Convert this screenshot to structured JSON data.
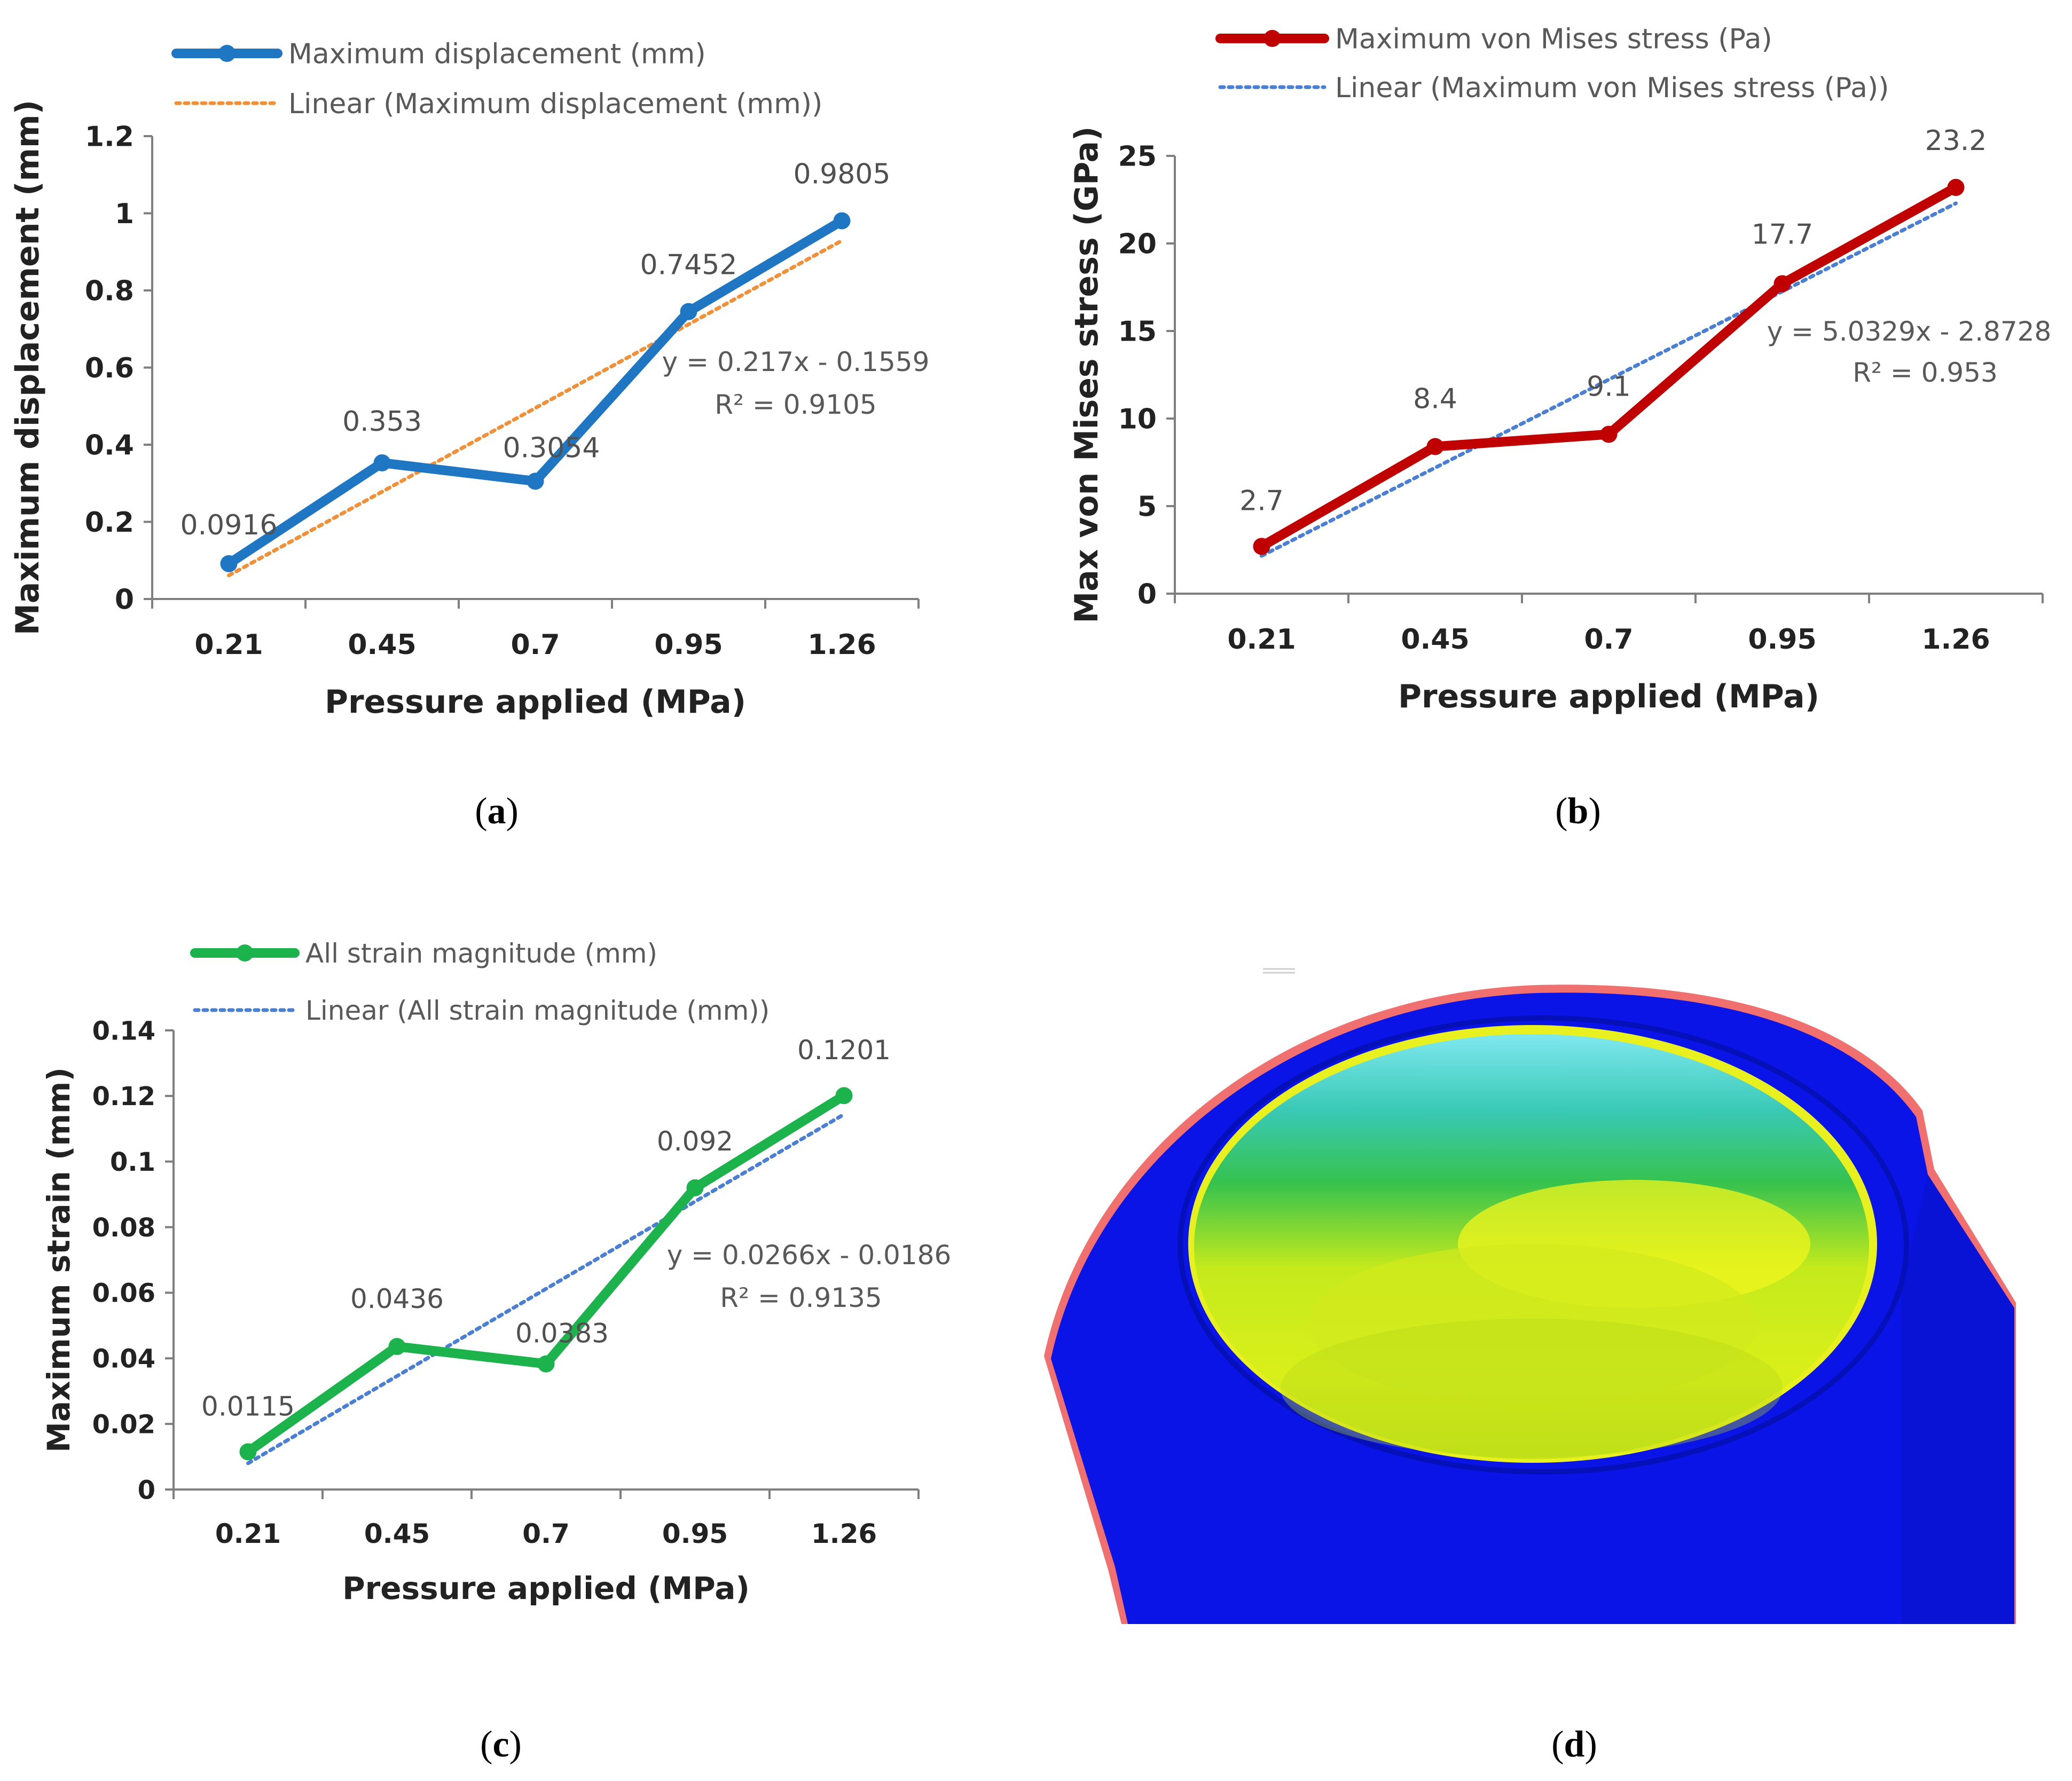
{
  "colors": {
    "blue_series": "#1f77c4",
    "orange_trend": "#f0913a",
    "red_series": "#c00000",
    "blue_trend": "#4a7fd4",
    "green_series": "#1db34c",
    "axis": "#7f7f7f"
  },
  "panel_labels": [
    "a",
    "b",
    "c",
    "d"
  ],
  "chart_data": [
    {
      "id": "a",
      "type": "line",
      "xlabel": "Pressure applied (MPa)",
      "ylabel": "Maximum displacement (mm)",
      "categories": [
        "0.21",
        "0.45",
        "0.7",
        "0.95",
        "1.26"
      ],
      "ylim": [
        0,
        1.2
      ],
      "yticks": [
        0,
        0.2,
        0.4,
        0.6,
        0.8,
        1,
        1.2
      ],
      "ytick_labels": [
        "0",
        "0.2",
        "0.4",
        "0.6",
        "0.8",
        "1",
        "1.2"
      ],
      "series": [
        {
          "name": "Maximum displacement (mm)",
          "values": [
            0.0916,
            0.353,
            0.3054,
            0.7452,
            0.9805
          ],
          "labels": [
            "0.0916",
            "0.353",
            "0.3054",
            "0.7452",
            "0.9805"
          ],
          "color": "#1f77c4"
        }
      ],
      "trendline": {
        "name": "Linear (Maximum displacement (mm))",
        "slope": 0.217,
        "intercept": -0.1559,
        "equation": "y = 0.217x - 0.1559",
        "r2": "R² = 0.9105",
        "color": "#f0913a"
      }
    },
    {
      "id": "b",
      "type": "line",
      "xlabel": "Pressure applied (MPa)",
      "ylabel": "Max von Mises stress (GPa)",
      "categories": [
        "0.21",
        "0.45",
        "0.7",
        "0.95",
        "1.26"
      ],
      "ylim": [
        0,
        25
      ],
      "yticks": [
        0,
        5,
        10,
        15,
        20,
        25
      ],
      "ytick_labels": [
        "0",
        "5",
        "10",
        "15",
        "20",
        "25"
      ],
      "series": [
        {
          "name": "Maximum von Mises stress (Pa)",
          "values": [
            2.7,
            8.4,
            9.1,
            17.7,
            23.2
          ],
          "labels": [
            "2.7",
            "8.4",
            "9.1",
            "17.7",
            "23.2"
          ],
          "color": "#c00000"
        }
      ],
      "trendline": {
        "name": "Linear (Maximum von Mises stress (Pa))",
        "slope": 5.0329,
        "intercept": -2.8728,
        "equation": "y = 5.0329x - 2.8728",
        "r2": "R² = 0.953",
        "color": "#4a7fd4"
      }
    },
    {
      "id": "c",
      "type": "line",
      "xlabel": "Pressure applied (MPa)",
      "ylabel": "Maximum strain (mm)",
      "categories": [
        "0.21",
        "0.45",
        "0.7",
        "0.95",
        "1.26"
      ],
      "ylim": [
        0,
        0.14
      ],
      "yticks": [
        0,
        0.02,
        0.04,
        0.06,
        0.08,
        0.1,
        0.12,
        0.14
      ],
      "ytick_labels": [
        "0",
        "0.02",
        "0.04",
        "0.06",
        "0.08",
        "0.1",
        "0.12",
        "0.14"
      ],
      "series": [
        {
          "name": "All strain magnitude (mm)",
          "values": [
            0.0115,
            0.0436,
            0.0383,
            0.092,
            0.1201
          ],
          "labels": [
            "0.0115",
            "0.0436",
            "0.0383",
            "0.092",
            "0.1201"
          ],
          "color": "#1db34c"
        }
      ],
      "trendline": {
        "name": "Linear (All strain magnitude (mm))",
        "slope": 0.0266,
        "intercept": -0.0186,
        "equation": "y = 0.0266x - 0.0186",
        "r2": "R² = 0.9135",
        "color": "#4a7fd4"
      }
    }
  ],
  "image_d": {
    "kind": "FEA contour render of a cylindrical part (top opening)",
    "colors": [
      "#0a14e6",
      "#dff21a",
      "#2ad07a",
      "#7fe8f0",
      "#f07070"
    ]
  }
}
